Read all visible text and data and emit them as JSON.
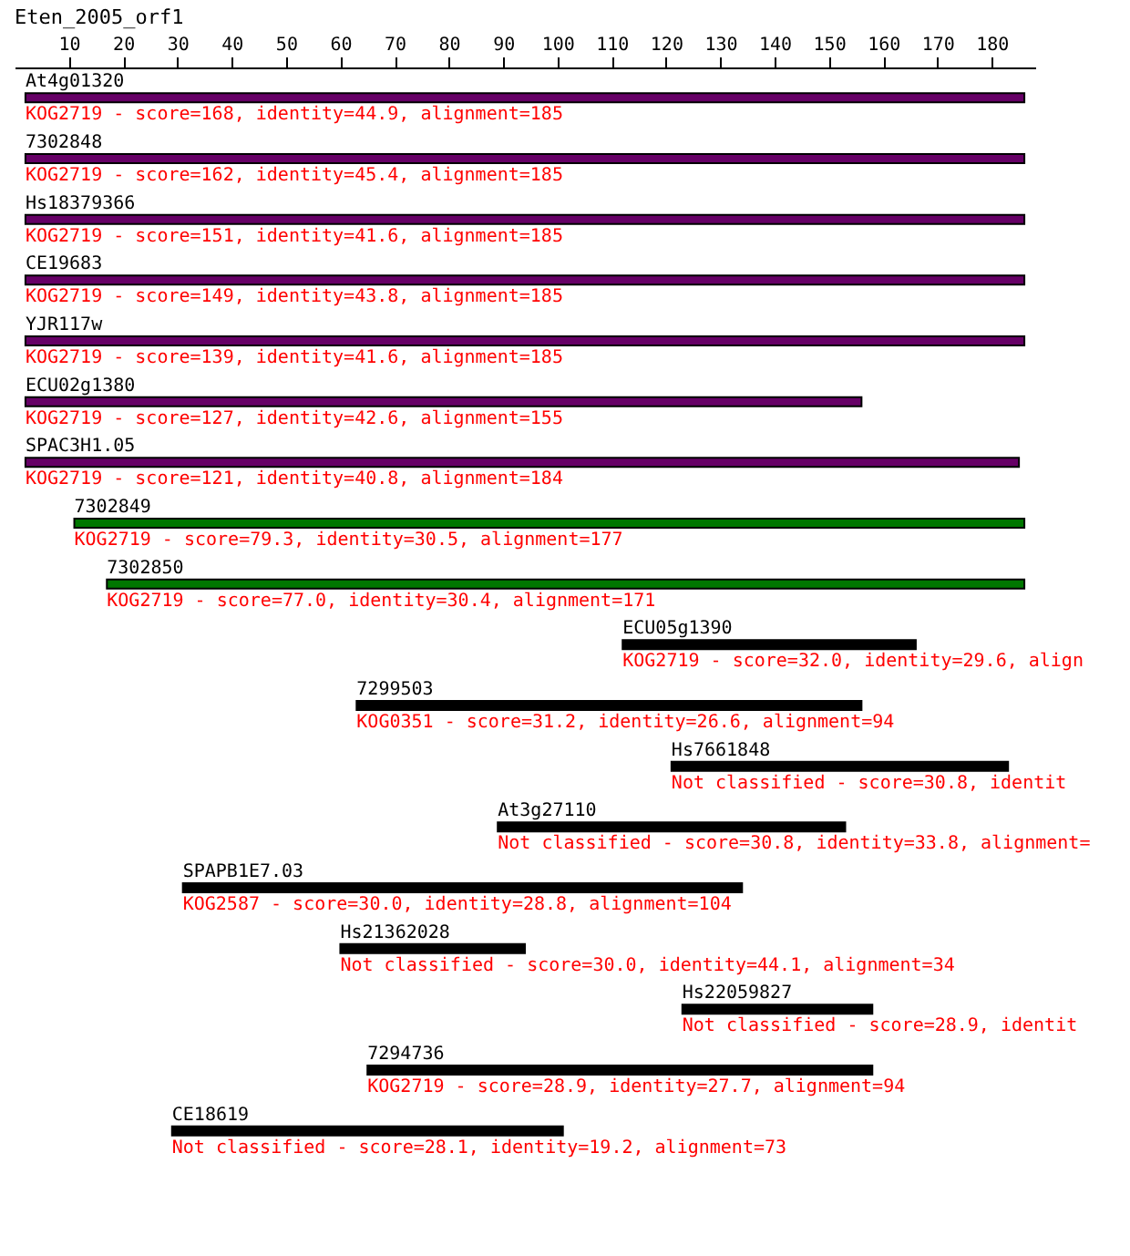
{
  "chart_data": {
    "type": "bar",
    "orientation": "horizontal",
    "title": "Eten_2005_orf1",
    "categories": [
      "At4g01320",
      "7302848",
      "Hs18379366",
      "CE19683",
      "YJR117w",
      "ECU02g1380",
      "SPAC3H1.05",
      "7302849",
      "7302850",
      "ECU05g1390",
      "7299503",
      "Hs7661848",
      "At3g27110",
      "SPAPB1E7.03",
      "Hs21362028",
      "Hs22059827",
      "7294736",
      "CE18619"
    ],
    "base": [
      2,
      2,
      2,
      2,
      2,
      2,
      2,
      11,
      17,
      112,
      63,
      121,
      89,
      31,
      60,
      123,
      65,
      29
    ],
    "values": [
      184,
      184,
      184,
      184,
      184,
      154,
      183,
      175,
      169,
      54,
      93,
      62,
      64,
      103,
      34,
      35,
      93,
      72
    ],
    "colors": [
      "#660066",
      "#660066",
      "#660066",
      "#660066",
      "#660066",
      "#660066",
      "#660066",
      "#007700",
      "#007700",
      "#000000",
      "#000000",
      "#000000",
      "#000000",
      "#000000",
      "#000000",
      "#000000",
      "#000000",
      "#000000"
    ],
    "xlim": [
      0,
      188
    ],
    "xticks": [
      10,
      20,
      30,
      40,
      50,
      60,
      70,
      80,
      90,
      100,
      110,
      120,
      130,
      140,
      150,
      160,
      170,
      180
    ],
    "tick_labels": "x",
    "annotations": [
      {
        "text": "KOG2719 - score=168, identity=44.9, alignment=185",
        "x": 2,
        "y": "At4g01320"
      },
      {
        "text": "KOG2719 - score=162, identity=45.4, alignment=185",
        "x": 2,
        "y": "7302848"
      },
      {
        "text": "KOG2719 - score=151, identity=41.6, alignment=185",
        "x": 2,
        "y": "Hs18379366"
      },
      {
        "text": "KOG2719 - score=149, identity=43.8, alignment=185",
        "x": 2,
        "y": "CE19683"
      },
      {
        "text": "KOG2719 - score=139, identity=41.6, alignment=185",
        "x": 2,
        "y": "YJR117w"
      },
      {
        "text": "KOG2719 - score=127, identity=42.6, alignment=155",
        "x": 2,
        "y": "ECU02g1380"
      },
      {
        "text": "KOG2719 - score=121, identity=40.8, alignment=184",
        "x": 2,
        "y": "SPAC3H1.05"
      },
      {
        "text": "KOG2719 - score=79.3, identity=30.5, alignment=177",
        "x": 11,
        "y": "7302849"
      },
      {
        "text": "KOG2719 - score=77.0, identity=30.4, alignment=171",
        "x": 17,
        "y": "7302850"
      },
      {
        "text": "KOG2719 - score=32.0, identity=29.6, align",
        "x": 112,
        "y": "ECU05g1390"
      },
      {
        "text": "KOG0351 - score=31.2, identity=26.6, alignment=94",
        "x": 63,
        "y": "7299503"
      },
      {
        "text": "Not classified - score=30.8, identit",
        "x": 121,
        "y": "Hs7661848"
      },
      {
        "text": "Not classified - score=30.8, identity=33.8, alignment=",
        "x": 89,
        "y": "At3g27110"
      },
      {
        "text": "KOG2587 - score=30.0, identity=28.8, alignment=104",
        "x": 31,
        "y": "SPAPB1E7.03"
      },
      {
        "text": "Not classified - score=30.0, identity=44.1, alignment=34",
        "x": 60,
        "y": "Hs21362028"
      },
      {
        "text": "Not classified - score=28.9, identit",
        "x": 123,
        "y": "Hs22059827"
      },
      {
        "text": "KOG2719 - score=28.9, identity=27.7, alignment=94",
        "x": 65,
        "y": "7294736"
      },
      {
        "text": "Not classified - score=28.1, identity=19.2, alignment=73",
        "x": 29,
        "y": "CE18619"
      }
    ]
  }
}
